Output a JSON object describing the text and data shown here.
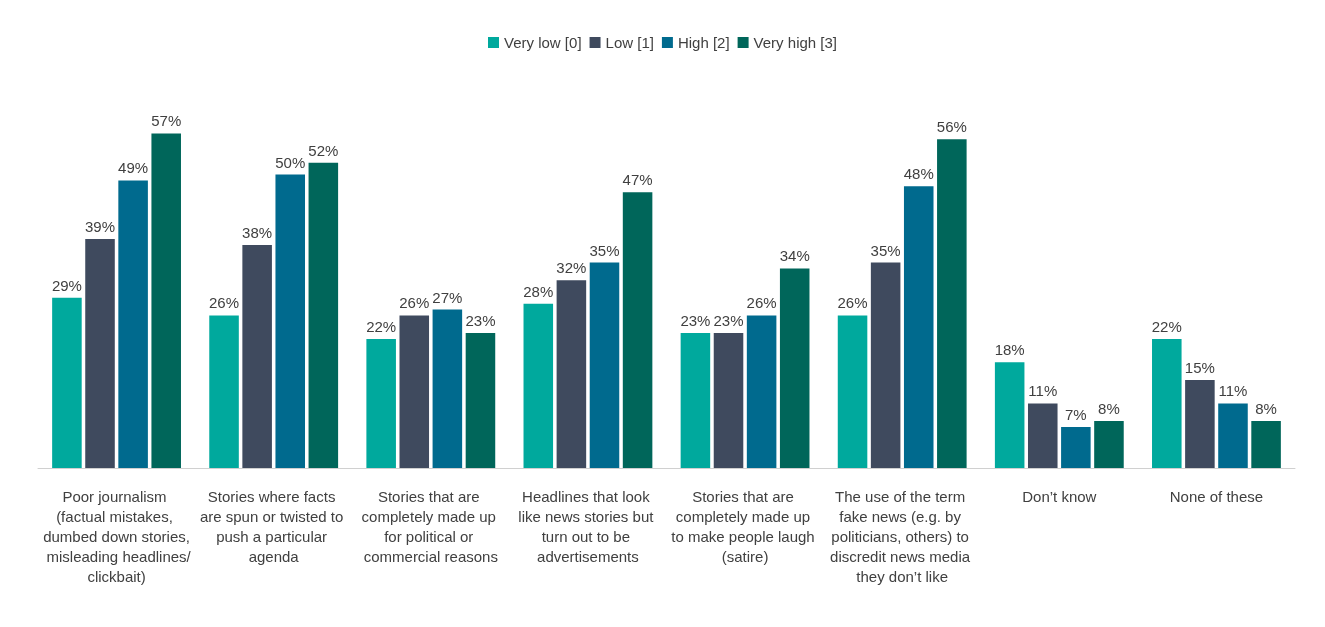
{
  "chart_data": {
    "type": "bar",
    "categories": [
      "Poor journalism (factual mistakes, dumbed down stories, misleading headlines/clickbait)",
      "Stories where facts are spun or twisted to push a particular agenda",
      "Stories that are completely made up for political or commercial reasons",
      "Headlines that look like news stories but turn out to be advertisements",
      "Stories that are completely made up to make people laugh (satire)",
      "The use of the term fake news (e.g. by politicians, others) to discredit news media they don’t like",
      "Don’t know",
      "None of these"
    ],
    "series": [
      {
        "name": "Very low [0]",
        "color": "#00a99d",
        "values": [
          29,
          26,
          22,
          28,
          23,
          26,
          18,
          22
        ],
        "value_labels": [
          "29%",
          "26%",
          "22%",
          "28%",
          "23%",
          "26%",
          "18%",
          "22%"
        ]
      },
      {
        "name": "Low [1]",
        "color": "#3f4a5e",
        "values": [
          39,
          38,
          26,
          32,
          23,
          35,
          11,
          15
        ],
        "value_labels": [
          "39%",
          "38%",
          "26%",
          "32%",
          "23%",
          "35%",
          "11%",
          "15%"
        ]
      },
      {
        "name": "High [2]",
        "color": "#006a8e",
        "values": [
          49,
          50,
          27,
          35,
          26,
          48,
          7,
          11
        ],
        "value_labels": [
          "49%",
          "50%",
          "27%",
          "35%",
          "26%",
          "48%",
          "7%",
          "11%"
        ]
      },
      {
        "name": "Very high [3]",
        "color": "#00665a",
        "values": [
          57,
          52,
          23,
          47,
          34,
          56,
          8,
          8
        ],
        "value_labels": [
          "57%",
          "52%",
          "23%",
          "47%",
          "34%",
          "56%",
          "8%",
          "8%"
        ]
      }
    ],
    "legend": "top"
  }
}
